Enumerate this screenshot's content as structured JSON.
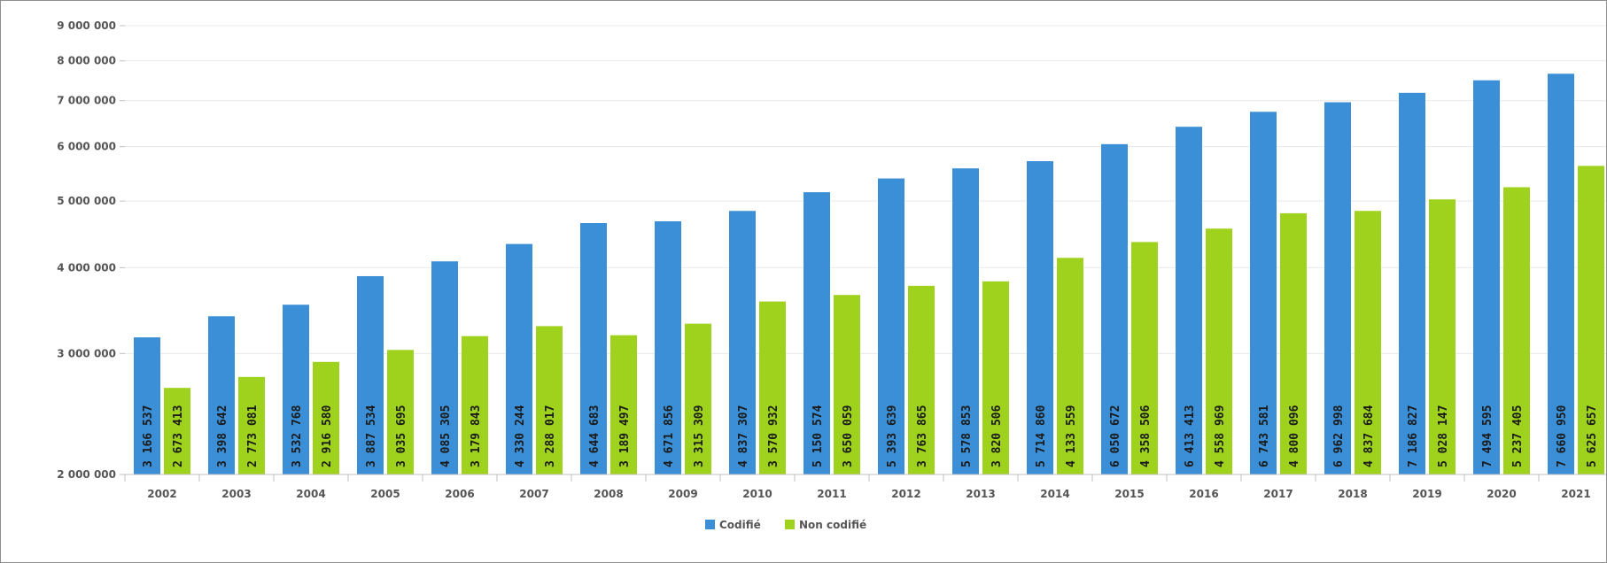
{
  "chart_data": {
    "type": "bar",
    "scale": "log",
    "ylim": [
      2000000,
      9000000
    ],
    "yticks": [
      {
        "value": 2000000,
        "label": "2 000 000"
      },
      {
        "value": 3000000,
        "label": "3 000 000"
      },
      {
        "value": 4000000,
        "label": "4 000 000"
      },
      {
        "value": 5000000,
        "label": "5 000 000"
      },
      {
        "value": 6000000,
        "label": "6 000 000"
      },
      {
        "value": 7000000,
        "label": "7 000 000"
      },
      {
        "value": 8000000,
        "label": "8 000 000"
      },
      {
        "value": 9000000,
        "label": "9 000 000"
      }
    ],
    "grid": true,
    "legend_position": "bottom-center",
    "categories": [
      "2002",
      "2003",
      "2004",
      "2005",
      "2006",
      "2007",
      "2008",
      "2009",
      "2010",
      "2011",
      "2012",
      "2013",
      "2014",
      "2015",
      "2016",
      "2017",
      "2018",
      "2019",
      "2020",
      "2021"
    ],
    "series": [
      {
        "name": "Codifié",
        "color": "#3a8fd6",
        "label_color": "#1a1a1a",
        "values": [
          3166537,
          3398642,
          3532768,
          3887534,
          4085305,
          4330244,
          4644683,
          4671856,
          4837307,
          5150574,
          5393639,
          5578853,
          5714860,
          6050672,
          6413413,
          6743581,
          6962998,
          7186827,
          7494595,
          7660950
        ],
        "labels": [
          "3 166 537",
          "3 398 642",
          "3 532 768",
          "3 887 534",
          "4 085 305",
          "4 330 244",
          "4 644 683",
          "4 671 856",
          "4 837 307",
          "5 150 574",
          "5 393 639",
          "5 578 853",
          "5 714 860",
          "6 050 672",
          "6 413 413",
          "6 743 581",
          "6 962 998",
          "7 186 827",
          "7 494 595",
          "7 660 950"
        ]
      },
      {
        "name": "Non codifié",
        "color": "#9fd21c",
        "label_color": "#1a1a1a",
        "values": [
          2673413,
          2773081,
          2916580,
          3035695,
          3179843,
          3288017,
          3189497,
          3315309,
          3570932,
          3650059,
          3763865,
          3820506,
          4133559,
          4358506,
          4558969,
          4800096,
          4837684,
          5028147,
          5237405,
          5625657
        ],
        "labels": [
          "2 673 413",
          "2 773 081",
          "2 916 580",
          "3 035 695",
          "3 179 843",
          "3 288 017",
          "3 189 497",
          "3 315 309",
          "3 570 932",
          "3 650 059",
          "3 763 865",
          "3 820 506",
          "4 133 559",
          "4 358 506",
          "4 558 969",
          "4 800 096",
          "4 837 684",
          "5 028 147",
          "5 237 405",
          "5 625 657"
        ]
      }
    ]
  }
}
